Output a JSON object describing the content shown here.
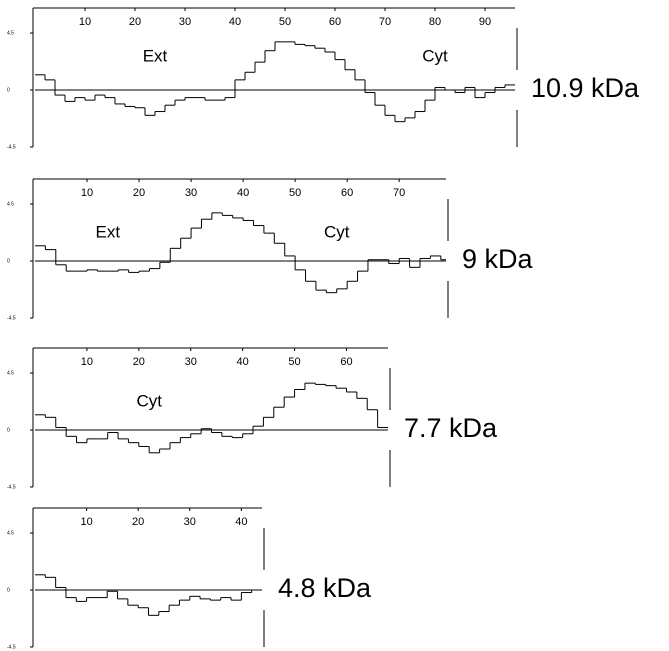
{
  "chart_data": [
    {
      "type": "line",
      "title": "10.9 kDa",
      "annotations": [
        "Ext",
        "Cyt"
      ],
      "color": "#000000",
      "xlim": [
        0,
        96
      ],
      "ylim": [
        -4.5,
        4.5
      ],
      "xticks": [
        10,
        20,
        30,
        40,
        50,
        60,
        70,
        80,
        90
      ],
      "yticks": [
        4.5,
        0,
        -4.5
      ],
      "x": [
        1,
        3,
        5,
        7,
        9,
        11,
        13,
        15,
        17,
        19,
        21,
        23,
        25,
        27,
        29,
        31,
        33,
        35,
        37,
        39,
        41,
        43,
        45,
        47,
        49,
        51,
        53,
        55,
        57,
        59,
        61,
        63,
        65,
        67,
        69,
        71,
        73,
        75,
        77,
        79,
        81,
        83,
        85,
        87,
        89,
        91,
        93,
        95
      ],
      "values": [
        1.2,
        0.8,
        -0.4,
        -0.9,
        -0.6,
        -0.8,
        -0.4,
        -0.6,
        -1.1,
        -1.3,
        -1.4,
        -2.0,
        -1.7,
        -1.2,
        -0.8,
        -0.6,
        -0.6,
        -0.8,
        -0.8,
        -0.6,
        0.8,
        1.4,
        2.2,
        3.1,
        3.8,
        3.8,
        3.6,
        3.5,
        3.3,
        3.0,
        2.4,
        1.6,
        0.8,
        -0.2,
        -1.2,
        -2.0,
        -2.5,
        -2.2,
        -1.7,
        -0.8,
        0.2,
        0,
        -0.2,
        0.2,
        -0.6,
        -0.2,
        0.2,
        0.4
      ]
    },
    {
      "type": "line",
      "title": "9 kDa",
      "annotations": [
        "Ext",
        "Cyt"
      ],
      "color": "#000000",
      "xlim": [
        0,
        79
      ],
      "ylim": [
        -4.5,
        4.5
      ],
      "xticks": [
        10,
        20,
        30,
        40,
        50,
        60,
        70
      ],
      "yticks": [
        4.5,
        0,
        -4.5
      ],
      "x": [
        1,
        3,
        5,
        7,
        9,
        11,
        13,
        15,
        17,
        19,
        21,
        23,
        25,
        27,
        29,
        31,
        33,
        35,
        37,
        39,
        41,
        43,
        45,
        47,
        49,
        51,
        53,
        55,
        57,
        59,
        61,
        63,
        65,
        67,
        69,
        71,
        73,
        75,
        77,
        79
      ],
      "values": [
        1.2,
        0.9,
        -0.3,
        -0.8,
        -0.8,
        -0.7,
        -0.8,
        -0.8,
        -0.7,
        -0.9,
        -0.8,
        -0.6,
        -0.1,
        1.0,
        1.8,
        2.6,
        3.3,
        3.8,
        3.6,
        3.4,
        3.2,
        2.8,
        2.2,
        1.4,
        0.4,
        -0.7,
        -1.6,
        -2.3,
        -2.5,
        -2.2,
        -1.6,
        -0.8,
        0.1,
        0.1,
        -0.2,
        0.2,
        -0.5,
        0.2,
        0.4,
        0.1
      ]
    },
    {
      "type": "line",
      "title": "7.7 kDa",
      "annotations": [
        "Cyt"
      ],
      "color": "#000000",
      "xlim": [
        0,
        68
      ],
      "ylim": [
        -4.5,
        4.5
      ],
      "xticks": [
        10,
        20,
        30,
        40,
        50,
        60
      ],
      "yticks": [
        4.5,
        0,
        -4.5
      ],
      "x": [
        1,
        3,
        5,
        7,
        9,
        11,
        13,
        15,
        17,
        19,
        21,
        23,
        25,
        27,
        29,
        31,
        33,
        35,
        37,
        39,
        41,
        43,
        45,
        47,
        49,
        51,
        53,
        55,
        57,
        59,
        61,
        63,
        65,
        67
      ],
      "values": [
        1.2,
        1.0,
        0.2,
        -0.5,
        -1.0,
        -0.7,
        -0.7,
        -0.2,
        -0.7,
        -1.0,
        -1.3,
        -1.8,
        -1.5,
        -1.0,
        -0.6,
        -0.3,
        0.1,
        -0.2,
        -0.5,
        -0.6,
        -0.3,
        0.3,
        1.0,
        1.8,
        2.6,
        3.2,
        3.7,
        3.6,
        3.5,
        3.3,
        3.0,
        2.5,
        1.6,
        0.2
      ]
    },
    {
      "type": "line",
      "title": "4.8 kDa",
      "annotations": [],
      "color": "#000000",
      "xlim": [
        0,
        44
      ],
      "ylim": [
        -4.5,
        4.5
      ],
      "xticks": [
        10,
        20,
        30,
        40
      ],
      "yticks": [
        4.5,
        0,
        -4.5
      ],
      "x": [
        1,
        3,
        5,
        7,
        9,
        11,
        13,
        15,
        17,
        19,
        21,
        23,
        25,
        27,
        29,
        31,
        33,
        35,
        37,
        39,
        41,
        43
      ],
      "values": [
        1.2,
        1.0,
        0.2,
        -0.6,
        -0.9,
        -0.6,
        -0.6,
        -0.1,
        -0.7,
        -1.2,
        -1.4,
        -2.0,
        -1.7,
        -1.2,
        -0.8,
        -0.5,
        -0.7,
        -0.8,
        -0.6,
        -0.8,
        -0.2,
        0
      ]
    }
  ]
}
